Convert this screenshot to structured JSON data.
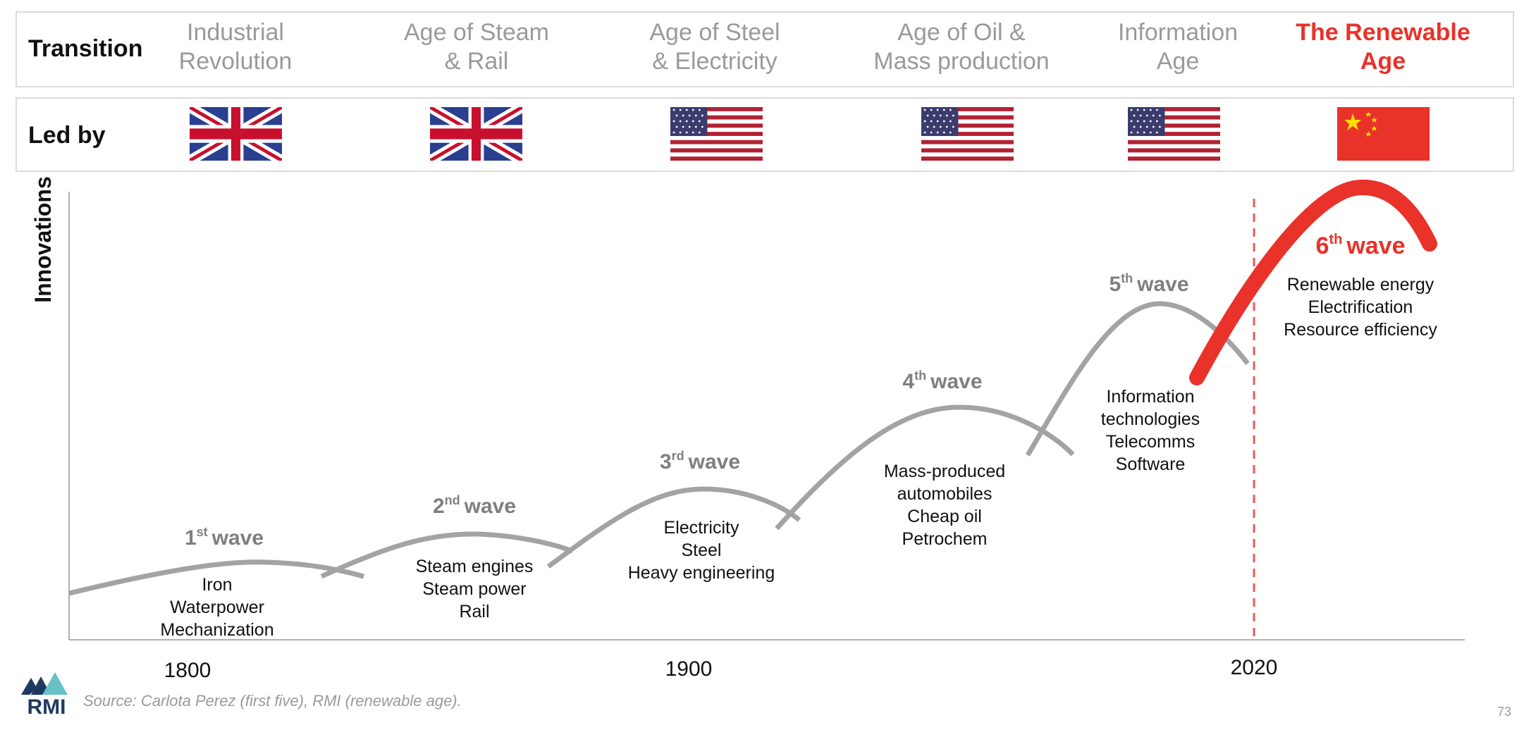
{
  "header": {
    "transition_label": "Transition",
    "led_by_label": "Led by",
    "transitions": [
      {
        "line1": "Industrial",
        "line2": "Revolution"
      },
      {
        "line1": "Age of Steam",
        "line2": "& Rail"
      },
      {
        "line1": "Age of Steel",
        "line2": "& Electricity"
      },
      {
        "line1": "Age of Oil &",
        "line2": "Mass production"
      },
      {
        "line1": "Information",
        "line2": "Age"
      },
      {
        "line1": "The Renewable",
        "line2": "Age"
      }
    ],
    "leaders": [
      "uk-flag",
      "uk-flag",
      "us-flag",
      "us-flag",
      "us-flag",
      "china-flag"
    ]
  },
  "chart": {
    "ylabel": "Innovations",
    "x_ticks": [
      "1800",
      "1900",
      "2020"
    ],
    "waves": [
      {
        "num": "1",
        "sup": "st",
        "word": "wave",
        "items": [
          "Iron",
          "Waterpower",
          "Mechanization"
        ]
      },
      {
        "num": "2",
        "sup": "nd",
        "word": "wave",
        "items": [
          "Steam engines",
          "Steam power",
          "Rail"
        ]
      },
      {
        "num": "3",
        "sup": "rd",
        "word": "wave",
        "items": [
          "Electricity",
          "Steel",
          "Heavy engineering"
        ]
      },
      {
        "num": "4",
        "sup": "th",
        "word": "wave",
        "items": [
          "Mass-produced",
          "automobiles",
          "Cheap oil",
          "Petrochem"
        ]
      },
      {
        "num": "5",
        "sup": "th",
        "word": "wave",
        "items": [
          "Information",
          "technologies",
          "Telecomms",
          "Software"
        ]
      },
      {
        "num": "6",
        "sup": "th",
        "word": "wave",
        "items": [
          "Renewable energy",
          "Electrification",
          "Resource efficiency"
        ]
      }
    ],
    "colors": {
      "wave": "#a3a3a3",
      "highlight": "#e8322a",
      "axis": "#b0b0b0",
      "label_grey": "#7f7f7f"
    }
  },
  "footer": {
    "logo_text": "RMI",
    "source": "Source: Carlota Perez (first five), RMI (renewable age).",
    "page_number": "73"
  }
}
